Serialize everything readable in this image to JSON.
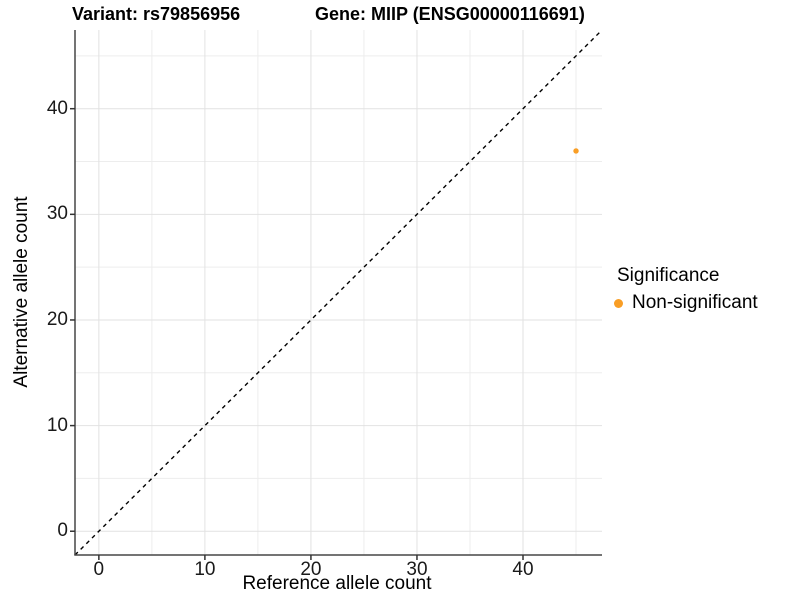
{
  "chart_data": {
    "type": "scatter",
    "title_left": "Variant: rs79856956",
    "title_right": "Gene: MIIP (ENSG00000116691)",
    "xlabel": "Reference allele count",
    "ylabel": "Alternative allele count",
    "xlim": [
      -2.25,
      47.45
    ],
    "ylim": [
      -2.25,
      47.45
    ],
    "x_ticks": [
      0,
      10,
      20,
      30,
      40
    ],
    "y_ticks": [
      0,
      10,
      20,
      30,
      40
    ],
    "x_minor_ticks": [
      5,
      15,
      25,
      35,
      45
    ],
    "y_minor_ticks": [
      5,
      15,
      25,
      35,
      45
    ],
    "grid": true,
    "identity_line": {
      "slope": 1,
      "intercept": 0,
      "style": "dashed"
    },
    "series": [
      {
        "name": "Non-significant",
        "color": "#F99E25",
        "points": [
          {
            "x": 45,
            "y": 36
          }
        ]
      }
    ],
    "legend": {
      "title": "Significance",
      "position": "right",
      "items": [
        {
          "label": "Non-significant",
          "color": "#F99E25"
        }
      ]
    },
    "colors": {
      "background": "#FFFFFF",
      "grid_major": "#E2E2E2",
      "grid_minor": "#EDEDED",
      "axis_line": "#474747",
      "tick_mark": "#333333",
      "identity_line": "#000000",
      "point": "#F99E25"
    }
  }
}
